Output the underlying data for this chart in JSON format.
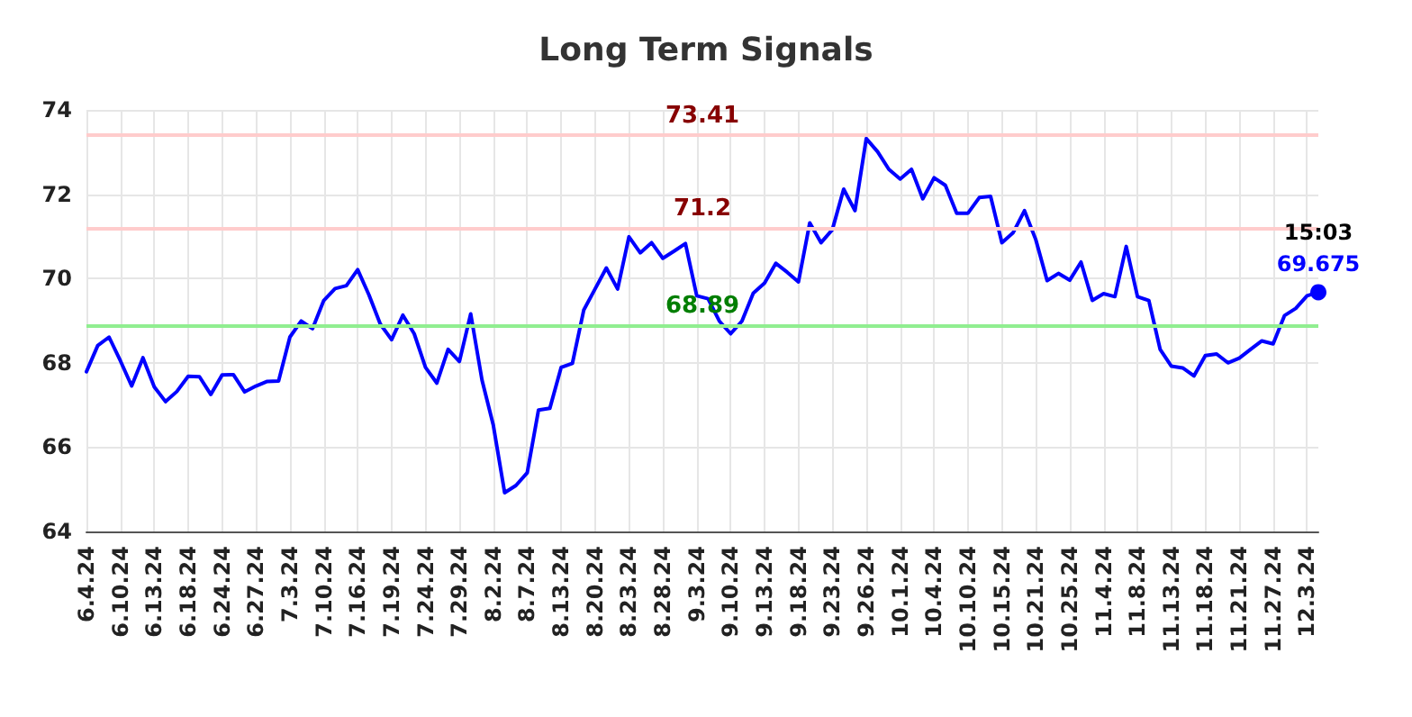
{
  "chart_data": {
    "type": "line",
    "title": "Long Term Signals",
    "categories": [
      "6.4.24",
      null,
      null,
      "6.10.24",
      null,
      null,
      "6.13.24",
      null,
      null,
      "6.18.24",
      null,
      null,
      "6.24.24",
      null,
      null,
      "6.27.24",
      null,
      null,
      "7.3.24",
      null,
      null,
      "7.10.24",
      null,
      null,
      "7.16.24",
      null,
      null,
      "7.19.24",
      null,
      null,
      "7.24.24",
      null,
      null,
      "7.29.24",
      null,
      null,
      "8.2.24",
      null,
      null,
      "8.7.24",
      null,
      null,
      "8.13.24",
      null,
      null,
      "8.20.24",
      null,
      null,
      "8.23.24",
      null,
      null,
      "8.28.24",
      null,
      null,
      "9.3.24",
      null,
      null,
      "9.10.24",
      null,
      null,
      "9.13.24",
      null,
      null,
      "9.18.24",
      null,
      null,
      "9.23.24",
      null,
      null,
      "9.26.24",
      null,
      null,
      "10.1.24",
      null,
      null,
      "10.4.24",
      null,
      null,
      "10.10.24",
      null,
      null,
      "10.15.24",
      null,
      null,
      "10.21.24",
      null,
      null,
      "10.25.24",
      null,
      null,
      "11.4.24",
      null,
      null,
      "11.8.24",
      null,
      null,
      "11.13.24",
      null,
      null,
      "11.18.24",
      null,
      null,
      "11.21.24",
      null,
      null,
      "11.27.24",
      null,
      null,
      "12.3.24",
      null
    ],
    "series": [
      {
        "color": "#0000ff",
        "values": [
          67.79,
          68.41,
          68.61,
          68.05,
          67.45,
          68.12,
          67.43,
          67.08,
          67.32,
          67.68,
          67.67,
          67.25,
          67.71,
          67.72,
          67.31,
          67.45,
          67.56,
          67.57,
          68.61,
          68.99,
          68.81,
          69.48,
          69.76,
          69.83,
          70.21,
          69.61,
          68.92,
          68.55,
          69.13,
          68.69,
          67.89,
          67.52,
          68.32,
          68.03,
          69.16,
          67.59,
          66.52,
          64.92,
          65.09,
          65.39,
          66.88,
          66.92,
          67.89,
          67.99,
          69.25,
          69.75,
          70.25,
          69.75,
          70.99,
          70.61,
          70.85,
          70.48,
          70.65,
          70.83,
          69.59,
          69.52,
          68.99,
          68.69,
          68.99,
          69.65,
          69.89,
          70.36,
          70.15,
          69.92,
          71.32,
          70.85,
          71.16,
          72.12,
          71.61,
          73.32,
          73.01,
          72.59,
          72.36,
          72.59,
          71.89,
          72.39,
          72.21,
          71.55,
          71.55,
          71.92,
          71.95,
          70.85,
          71.09,
          71.61,
          70.92,
          69.95,
          70.12,
          69.96,
          70.39,
          69.48,
          69.64,
          69.57,
          70.76,
          69.57,
          69.48,
          68.32,
          67.92,
          67.88,
          67.69,
          68.17,
          68.21,
          68.0,
          68.11,
          68.32,
          68.52,
          68.45,
          69.12,
          69.29,
          69.59,
          69.675
        ],
        "value_labels": [
          null,
          null,
          null,
          null,
          null,
          null,
          null,
          null,
          null,
          null,
          null,
          null,
          null,
          null,
          null,
          null,
          null,
          null,
          null,
          null,
          null,
          null,
          null,
          null,
          null,
          null,
          null,
          null,
          null,
          null,
          null,
          null,
          null,
          null,
          null,
          null,
          null,
          null,
          null,
          null,
          null,
          null,
          null,
          null,
          null,
          null,
          null,
          null,
          null,
          null,
          null,
          null,
          null,
          null,
          null,
          null,
          null,
          null,
          null,
          null,
          null,
          null,
          null,
          null,
          null,
          null,
          null,
          null,
          null,
          null,
          null,
          null,
          null,
          null,
          null,
          null,
          null,
          null,
          null,
          null,
          null,
          null,
          null,
          null,
          null,
          null,
          null,
          null,
          null,
          null,
          null,
          null,
          null,
          null,
          null,
          null,
          null,
          null,
          null,
          null,
          null,
          null,
          null,
          null,
          null,
          null,
          null,
          null,
          null,
          "69.675"
        ]
      }
    ],
    "ylim": [
      64,
      74
    ],
    "yticks": [
      64,
      66,
      68,
      70,
      72,
      74
    ],
    "grid": true,
    "marker": "none",
    "line_style": "solid",
    "ref_lines": [
      {
        "axis": "y",
        "value": 73.41,
        "label": "73.41",
        "color": "#ffcccc"
      },
      {
        "axis": "y",
        "value": 71.2,
        "label": "71.2",
        "color": "#ffcccc"
      },
      {
        "axis": "y",
        "value": 68.89,
        "label": "68.89",
        "color": "#90ee90"
      }
    ],
    "annotations": [
      {
        "text": "15:03",
        "y": 69.675
      }
    ]
  }
}
